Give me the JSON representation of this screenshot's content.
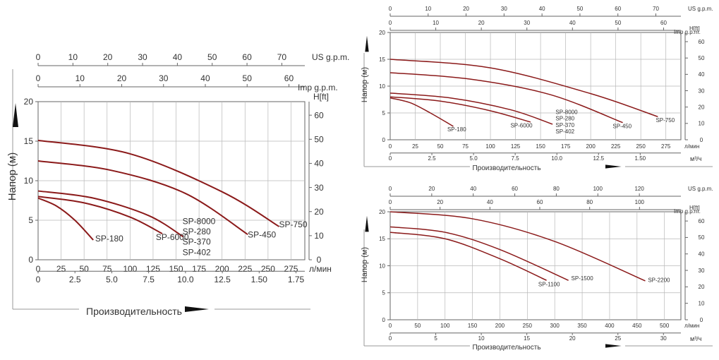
{
  "chart_data": [
    {
      "type": "line",
      "ylabel": "Напор (м)",
      "xlabel": "Производительность",
      "x_unit_lpm": "л/мин",
      "x_unit_m3h": "",
      "ft_label": "H[ft]",
      "us_label": "US g.p.m.",
      "imp_label": "Imp g.p.m.",
      "xlim_lpm": [
        0,
        290
      ],
      "ylim_m": [
        0,
        20
      ],
      "xticks_lpm": [
        0,
        25,
        50,
        75,
        100,
        125,
        150,
        175,
        200,
        225,
        250,
        275
      ],
      "yticks_m": [
        0,
        5,
        10,
        15,
        20
      ],
      "xticks_m3h": [
        "0",
        "2.5",
        "5.0",
        "7.5",
        "10.0",
        "12.5",
        "1.50",
        "1.75"
      ],
      "m3h_scale_max": 1.75,
      "ft_ticks": [
        0,
        10,
        20,
        30,
        40,
        50,
        60
      ],
      "us_ticks": [
        0,
        10,
        20,
        30,
        40,
        50,
        60,
        70
      ],
      "us_max": 76.6,
      "imp_ticks": [
        0,
        10,
        20,
        30,
        40,
        50,
        60
      ],
      "imp_max": 63.8,
      "series": [
        {
          "name": "SP-180",
          "x": [
            0,
            20,
            40,
            60
          ],
          "y": [
            7.8,
            6.8,
            5.0,
            2.5
          ]
        },
        {
          "name": "SP-6000",
          "x": [
            0,
            50,
            100,
            135
          ],
          "y": [
            8.0,
            7.2,
            5.4,
            3.3
          ]
        },
        {
          "name": "SP-280",
          "x": [
            0,
            60,
            120,
            158
          ],
          "y": [
            8.7,
            7.8,
            5.6,
            2.9
          ]
        },
        {
          "name": "SP-450",
          "x": [
            0,
            80,
            160,
            228
          ],
          "y": [
            12.5,
            11.3,
            8.4,
            3.2
          ]
        },
        {
          "name": "SP-750",
          "x": [
            0,
            100,
            200,
            262
          ],
          "y": [
            15.1,
            13.4,
            8.6,
            4.2
          ]
        }
      ],
      "labels": [
        {
          "text": "SP-180",
          "x": 62,
          "y": 2.3
        },
        {
          "text": "SP-6000",
          "x": 128,
          "y": 2.5
        },
        {
          "text": "SP-8000",
          "x": 157,
          "y": 4.5
        },
        {
          "text": "SP-280",
          "x": 157,
          "y": 3.2
        },
        {
          "text": "SP-370",
          "x": 157,
          "y": 1.9
        },
        {
          "text": "SP-402",
          "x": 157,
          "y": 0.6
        },
        {
          "text": "SP-450",
          "x": 228,
          "y": 2.8
        },
        {
          "text": "SP-750",
          "x": 262,
          "y": 4.1
        }
      ]
    },
    {
      "type": "line",
      "ylabel": "Напор (м)",
      "xlabel": "Производительность",
      "x_unit_lpm": "л/мин",
      "x_unit_m3h": "м³/ч",
      "ft_label": "H[ft]",
      "us_label": "US g.p.m.",
      "imp_label": "Imp g.p.m.",
      "xlim_lpm": [
        0,
        290
      ],
      "ylim_m": [
        0,
        20
      ],
      "xticks_lpm": [
        0,
        25,
        50,
        75,
        100,
        125,
        150,
        175,
        200,
        225,
        250,
        275
      ],
      "yticks_m": [
        0,
        5,
        10,
        15,
        20
      ],
      "xticks_m3h": [
        "0",
        "2.5",
        "5.0",
        "7.5",
        "10.0",
        "12.5",
        "1.50"
      ],
      "m3h_scale_max": 1.5,
      "ft_ticks": [
        0,
        10,
        20,
        30,
        40,
        50,
        60
      ],
      "us_ticks": [
        0,
        10,
        20,
        30,
        40,
        50,
        60,
        70
      ],
      "us_max": 76.6,
      "imp_ticks": [
        0,
        10,
        20,
        30,
        40,
        50,
        60
      ],
      "imp_max": 63.8,
      "series": [
        {
          "name": "SP-180",
          "x": [
            0,
            20,
            40,
            63
          ],
          "y": [
            7.8,
            6.9,
            5.0,
            2.5
          ]
        },
        {
          "name": "SP-6000",
          "x": [
            0,
            50,
            100,
            140
          ],
          "y": [
            8.0,
            7.2,
            5.4,
            3.3
          ]
        },
        {
          "name": "SP-280",
          "x": [
            0,
            60,
            120,
            162
          ],
          "y": [
            8.7,
            7.8,
            5.6,
            2.9
          ]
        },
        {
          "name": "SP-450",
          "x": [
            0,
            80,
            160,
            232
          ],
          "y": [
            12.5,
            11.3,
            8.4,
            3.2
          ]
        },
        {
          "name": "SP-750",
          "x": [
            0,
            100,
            200,
            267
          ],
          "y": [
            15.0,
            13.4,
            8.6,
            4.3
          ]
        }
      ],
      "labels": [
        {
          "text": "SP-180",
          "x": 57,
          "y": 1.6
        },
        {
          "text": "SP-6000",
          "x": 120,
          "y": 2.3
        },
        {
          "text": "SP-8000",
          "x": 165,
          "y": 4.8
        },
        {
          "text": "SP-280",
          "x": 165,
          "y": 3.6
        },
        {
          "text": "SP-370",
          "x": 165,
          "y": 2.4
        },
        {
          "text": "SP-402",
          "x": 165,
          "y": 1.2
        },
        {
          "text": "SP-450",
          "x": 222,
          "y": 2.2
        },
        {
          "text": "SP-750",
          "x": 265,
          "y": 3.3
        }
      ]
    },
    {
      "type": "line",
      "ylabel": "Напор (м)",
      "xlabel": "Производительность",
      "x_unit_lpm": "л/мин",
      "x_unit_m3h": "м³/ч",
      "ft_label": "H[ft]",
      "us_label": "US g.p.m.",
      "imp_label": "Imp g.p.m.",
      "xlim_lpm": [
        0,
        530
      ],
      "ylim_m": [
        0,
        20
      ],
      "xticks_lpm": [
        0,
        50,
        100,
        150,
        200,
        250,
        300,
        350,
        400,
        450,
        500
      ],
      "yticks_m": [
        0,
        5,
        10,
        15,
        20
      ],
      "xticks_m3h": [
        "0",
        "5",
        "10",
        "15",
        "20",
        "25",
        "30"
      ],
      "m3h_scale_max": 30,
      "ft_ticks": [
        0,
        10,
        20,
        30,
        40,
        50,
        60
      ],
      "us_ticks": [
        0,
        20,
        40,
        60,
        80,
        100,
        120
      ],
      "us_max": 140,
      "imp_ticks": [
        0,
        20,
        40,
        60,
        80,
        100
      ],
      "imp_max": 116.6,
      "series": [
        {
          "name": "SP-1100",
          "x": [
            0,
            100,
            200,
            285
          ],
          "y": [
            16.2,
            15.0,
            11.3,
            7.3
          ]
        },
        {
          "name": "SP-1500",
          "x": [
            0,
            100,
            200,
            325
          ],
          "y": [
            17.2,
            16.2,
            13.0,
            7.3
          ]
        },
        {
          "name": "SP-2200",
          "x": [
            0,
            150,
            300,
            465
          ],
          "y": [
            20.0,
            18.7,
            14.5,
            7.2
          ]
        }
      ],
      "labels": [
        {
          "text": "SP-1100",
          "x": 270,
          "y": 6.2
        },
        {
          "text": "SP-1500",
          "x": 330,
          "y": 7.3
        },
        {
          "text": "SP-2200",
          "x": 470,
          "y": 7.0
        }
      ]
    }
  ]
}
